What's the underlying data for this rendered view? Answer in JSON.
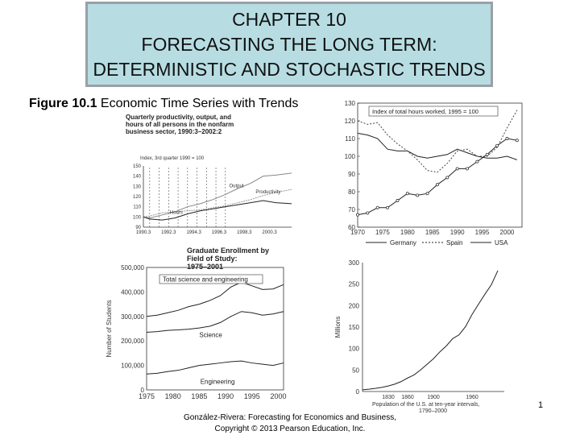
{
  "header": {
    "line1": "CHAPTER 10",
    "line2": "FORECASTING THE LONG TERM:",
    "line3": "DETERMINISTIC AND STOCHASTIC TRENDS"
  },
  "caption": {
    "figure_label": "Figure 10.1",
    "text": " Economic Time Series with Trends"
  },
  "footer": {
    "line1": "González-Rivera: Forecasting for Economics and Business,",
    "line2": "Copyright © 2013 Pearson Education, Inc."
  },
  "page_number": "1",
  "chart_data": [
    {
      "type": "line",
      "title": "Quarterly productivity, output, and hours of all persons in the nonfarm business sector, 1990:3–2002:2",
      "subtitle": "Index, 3rd quarter 1990 = 100",
      "x_tick_labels": [
        "1990.3",
        "1992.3",
        "1994.3",
        "1996.3",
        "1998.3",
        "2000.3"
      ],
      "x": [
        1990.5,
        1991,
        1992,
        1993,
        1994,
        1995,
        1996,
        1997,
        1998,
        1999,
        2000,
        2001,
        2002.25
      ],
      "ylim": [
        90,
        150
      ],
      "y_ticks": [
        90,
        100,
        110,
        120,
        130,
        140,
        150
      ],
      "series": [
        {
          "name": "Output",
          "values": [
            100,
            99,
            102,
            105,
            110,
            113,
            117,
            122,
            128,
            133,
            140,
            141,
            143
          ]
        },
        {
          "name": "Productivity",
          "values": [
            100,
            101,
            104,
            105,
            106,
            107,
            109,
            111,
            114,
            117,
            121,
            124,
            127
          ]
        },
        {
          "name": "Hours",
          "values": [
            100,
            98,
            97,
            99,
            103,
            106,
            108,
            110,
            112,
            114,
            116,
            114,
            113
          ]
        }
      ]
    },
    {
      "type": "line",
      "title": "Index of total hours worked, 1995 = 100",
      "xlim": [
        1970,
        2003
      ],
      "x_ticks": [
        1970,
        1975,
        1980,
        1985,
        1990,
        1995,
        2000
      ],
      "ylim": [
        60,
        130
      ],
      "y_ticks": [
        60,
        70,
        80,
        90,
        100,
        110,
        120,
        130
      ],
      "x": [
        1970,
        1972,
        1974,
        1976,
        1978,
        1980,
        1982,
        1984,
        1986,
        1988,
        1990,
        1992,
        1994,
        1996,
        1998,
        2000,
        2002
      ],
      "series": [
        {
          "name": "Germany",
          "values": [
            113,
            112,
            110,
            104,
            103,
            103,
            100,
            99,
            100,
            101,
            104,
            102,
            100,
            99,
            99,
            100,
            98
          ]
        },
        {
          "name": "Spain",
          "values": [
            120,
            118,
            119,
            112,
            107,
            103,
            98,
            92,
            91,
            96,
            103,
            104,
            100,
            100,
            105,
            116,
            126
          ]
        },
        {
          "name": "USA",
          "values": [
            67,
            68,
            71,
            71,
            75,
            79,
            78,
            79,
            84,
            88,
            93,
            93,
            97,
            101,
            106,
            110,
            109
          ]
        }
      ]
    },
    {
      "type": "line",
      "title": "Graduate Enrollment by Field of Study: 1975–2001",
      "ylabel": "Number of Students",
      "xlim": [
        1975,
        2001
      ],
      "x_ticks": [
        1975,
        1980,
        1985,
        1990,
        1995,
        2000
      ],
      "ylim": [
        0,
        500000
      ],
      "y_tick_labels": [
        "0",
        "100,000",
        "200,000",
        "300,000",
        "400,000",
        "500,000"
      ],
      "x": [
        1975,
        1977,
        1979,
        1981,
        1983,
        1985,
        1987,
        1989,
        1991,
        1993,
        1995,
        1997,
        1999,
        2001
      ],
      "series": [
        {
          "name": "Total science and engineering",
          "values": [
            300000,
            305000,
            315000,
            325000,
            340000,
            350000,
            365000,
            385000,
            420000,
            440000,
            425000,
            410000,
            412000,
            430000
          ]
        },
        {
          "name": "Science",
          "values": [
            235000,
            238000,
            243000,
            245000,
            248000,
            253000,
            260000,
            275000,
            300000,
            320000,
            315000,
            305000,
            310000,
            320000
          ]
        },
        {
          "name": "Engineering",
          "values": [
            65000,
            68000,
            75000,
            80000,
            90000,
            100000,
            105000,
            110000,
            115000,
            118000,
            110000,
            105000,
            100000,
            110000
          ]
        }
      ]
    },
    {
      "type": "line",
      "ylabel": "Millions",
      "xlabel": "Population of the U.S. at ten-year intervals, 1790–2000",
      "xlim": [
        1790,
        2010
      ],
      "x_tick_labels": [
        "1830",
        "1860",
        "1900",
        "1960"
      ],
      "ylim": [
        0,
        300
      ],
      "y_ticks": [
        0,
        50,
        100,
        150,
        200,
        250,
        300
      ],
      "x": [
        1790,
        1800,
        1810,
        1820,
        1830,
        1840,
        1850,
        1860,
        1870,
        1880,
        1890,
        1900,
        1910,
        1920,
        1930,
        1940,
        1950,
        1960,
        1970,
        1980,
        1990,
        2000
      ],
      "series": [
        {
          "values": [
            3.9,
            5.3,
            7.2,
            9.6,
            12.9,
            17.1,
            23.2,
            31.4,
            38.6,
            50.2,
            63.0,
            76.2,
            92.2,
            106.0,
            123.2,
            132.2,
            151.3,
            179.3,
            203.2,
            226.5,
            248.7,
            281.4
          ]
        }
      ]
    }
  ]
}
